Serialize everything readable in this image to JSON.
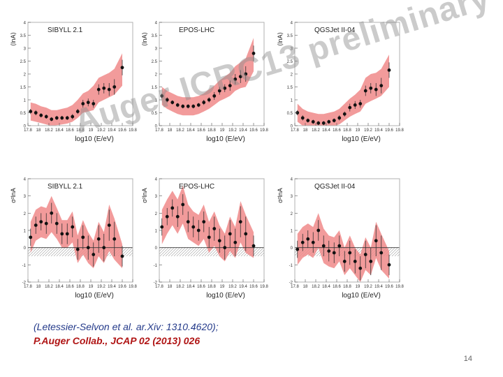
{
  "watermark": "Auger ICRC13 preliminary",
  "references": {
    "line1": "(Letessier-Selvon et al. ar.Xiv: 1310.4620);",
    "line2": "P.Auger Collab., JCAP 02 (2013) 026"
  },
  "page_number": "14",
  "colors": {
    "band": "#f08a8a",
    "point": "#111111",
    "grid": "#b0b0b0"
  },
  "chart_data": [
    {
      "type": "scatter",
      "panel": "top-left",
      "model": "SIBYLL 2.1",
      "ylabel": "⟨lnA⟩",
      "xlabel": "log10 (E/eV)",
      "xlim": [
        17.8,
        19.8
      ],
      "ylim": [
        0,
        4
      ],
      "yticks": [
        "0",
        "0.5",
        "1",
        "1.5",
        "2",
        "2.5",
        "3",
        "3.5",
        "4"
      ],
      "xticks": [
        "17.8",
        "18",
        "18.2",
        "18.4",
        "18.6",
        "18.8",
        "19",
        "19.2",
        "19.4",
        "19.6",
        "19.8"
      ],
      "x": [
        17.85,
        17.95,
        18.05,
        18.15,
        18.25,
        18.35,
        18.45,
        18.55,
        18.65,
        18.75,
        18.85,
        18.95,
        19.05,
        19.15,
        19.25,
        19.35,
        19.45,
        19.6
      ],
      "y": [
        0.55,
        0.5,
        0.4,
        0.35,
        0.25,
        0.3,
        0.3,
        0.3,
        0.35,
        0.55,
        0.85,
        0.9,
        0.85,
        1.4,
        1.45,
        1.4,
        1.5,
        2.25
      ],
      "band_lower": [
        0.2,
        0.15,
        0.1,
        0.05,
        0.0,
        0.02,
        0.05,
        0.08,
        0.15,
        0.3,
        0.5,
        0.55,
        0.6,
        0.9,
        1.0,
        1.1,
        1.2,
        1.55
      ],
      "band_upper": [
        0.9,
        0.85,
        0.75,
        0.7,
        0.6,
        0.6,
        0.65,
        0.7,
        0.8,
        1.0,
        1.25,
        1.35,
        1.55,
        1.85,
        1.95,
        2.05,
        2.2,
        2.8
      ],
      "errors": [
        0.1,
        0.1,
        0.08,
        0.08,
        0.08,
        0.08,
        0.08,
        0.08,
        0.1,
        0.1,
        0.15,
        0.15,
        0.15,
        0.2,
        0.2,
        0.25,
        0.3,
        0.3
      ]
    },
    {
      "type": "scatter",
      "panel": "top-middle",
      "model": "EPOS-LHC",
      "ylabel": "⟨lnA⟩",
      "xlabel": "log10 (E/eV)",
      "xlim": [
        17.8,
        19.8
      ],
      "ylim": [
        0,
        4
      ],
      "yticks": [
        "0",
        "0.5",
        "1",
        "1.5",
        "2",
        "2.5",
        "3",
        "3.5",
        "4"
      ],
      "xticks": [
        "17.8",
        "18",
        "18.2",
        "18.4",
        "18.6",
        "18.8",
        "19",
        "19.2",
        "19.4",
        "19.6",
        "19.8"
      ],
      "x": [
        17.85,
        17.95,
        18.05,
        18.15,
        18.25,
        18.35,
        18.45,
        18.55,
        18.65,
        18.75,
        18.85,
        18.95,
        19.05,
        19.15,
        19.25,
        19.35,
        19.45,
        19.6
      ],
      "y": [
        1.15,
        1.0,
        0.9,
        0.8,
        0.75,
        0.75,
        0.75,
        0.8,
        0.9,
        1.0,
        1.15,
        1.35,
        1.45,
        1.55,
        1.8,
        1.9,
        2.0,
        2.8
      ],
      "band_lower": [
        0.8,
        0.65,
        0.55,
        0.45,
        0.4,
        0.4,
        0.4,
        0.45,
        0.55,
        0.65,
        0.8,
        0.95,
        1.05,
        1.15,
        1.35,
        1.45,
        1.5,
        2.1
      ],
      "band_upper": [
        1.5,
        1.35,
        1.25,
        1.15,
        1.1,
        1.1,
        1.1,
        1.15,
        1.25,
        1.4,
        1.55,
        1.75,
        1.9,
        2.05,
        2.3,
        2.45,
        2.6,
        3.4
      ],
      "errors": [
        0.1,
        0.1,
        0.08,
        0.08,
        0.08,
        0.08,
        0.08,
        0.08,
        0.1,
        0.1,
        0.15,
        0.15,
        0.15,
        0.2,
        0.2,
        0.25,
        0.3,
        0.3
      ]
    },
    {
      "type": "scatter",
      "panel": "top-right",
      "model": "QGSJet II-04",
      "ylabel": "⟨lnA⟩",
      "xlabel": "log10 (E/eV)",
      "xlim": [
        17.8,
        19.8
      ],
      "ylim": [
        0,
        4
      ],
      "yticks": [
        "0",
        "0.5",
        "1",
        "1.5",
        "2",
        "2.5",
        "3",
        "3.5",
        "4"
      ],
      "xticks": [
        "17.8",
        "18",
        "18.2",
        "18.4",
        "18.6",
        "18.8",
        "19",
        "19.2",
        "19.4",
        "19.6",
        "19.8"
      ],
      "x": [
        17.85,
        17.95,
        18.05,
        18.15,
        18.25,
        18.35,
        18.45,
        18.55,
        18.65,
        18.75,
        18.85,
        18.95,
        19.05,
        19.15,
        19.25,
        19.35,
        19.45,
        19.6
      ],
      "y": [
        0.5,
        0.3,
        0.2,
        0.15,
        0.1,
        0.1,
        0.15,
        0.2,
        0.3,
        0.45,
        0.7,
        0.8,
        0.85,
        1.35,
        1.45,
        1.4,
        1.55,
        2.15
      ],
      "band_lower": [
        0.15,
        0.0,
        0.0,
        0.0,
        0.0,
        0.0,
        0.0,
        0.0,
        0.05,
        0.2,
        0.35,
        0.45,
        0.55,
        0.85,
        0.95,
        1.05,
        1.15,
        1.5
      ],
      "band_upper": [
        0.85,
        0.65,
        0.55,
        0.5,
        0.45,
        0.45,
        0.5,
        0.55,
        0.65,
        0.85,
        1.05,
        1.2,
        1.4,
        1.85,
        2.0,
        2.05,
        2.2,
        2.75
      ],
      "errors": [
        0.1,
        0.1,
        0.08,
        0.08,
        0.08,
        0.08,
        0.08,
        0.08,
        0.1,
        0.1,
        0.15,
        0.15,
        0.15,
        0.2,
        0.2,
        0.25,
        0.3,
        0.3
      ]
    },
    {
      "type": "scatter",
      "panel": "bottom-left",
      "model": "SIBYLL 2.1",
      "ylabel": "σ²lnA",
      "xlabel": "log10 (E/eV)",
      "xlim": [
        17.8,
        19.8
      ],
      "ylim": [
        -2,
        4
      ],
      "shaded_below_zero": true,
      "yticks": [
        "-2",
        "-1",
        "0",
        "1",
        "2",
        "3",
        "4"
      ],
      "xticks": [
        "17.8",
        "18",
        "18.2",
        "18.4",
        "18.6",
        "18.8",
        "19",
        "19.2",
        "19.4",
        "19.6",
        "19.8"
      ],
      "x": [
        17.85,
        17.95,
        18.05,
        18.15,
        18.25,
        18.35,
        18.45,
        18.55,
        18.65,
        18.75,
        18.85,
        18.95,
        19.05,
        19.15,
        19.25,
        19.35,
        19.45,
        19.6
      ],
      "y": [
        0.6,
        1.3,
        1.5,
        1.4,
        2.0,
        1.4,
        0.8,
        0.8,
        1.2,
        -0.1,
        0.6,
        0.0,
        -0.4,
        0.5,
        0.0,
        1.3,
        0.5,
        -0.5
      ],
      "band_lower": [
        -0.3,
        0.4,
        0.6,
        0.5,
        0.9,
        0.5,
        0.0,
        0.0,
        0.3,
        -0.9,
        -0.4,
        -0.9,
        -1.2,
        -0.5,
        -0.9,
        -0.2,
        -0.7,
        -1.2
      ],
      "band_upper": [
        1.5,
        2.2,
        2.4,
        2.3,
        3.0,
        2.3,
        1.6,
        1.6,
        2.1,
        0.7,
        1.6,
        0.9,
        0.4,
        1.5,
        0.9,
        2.5,
        1.7,
        0.2
      ],
      "errors": [
        0.5,
        0.5,
        0.5,
        0.6,
        0.6,
        0.6,
        0.6,
        0.6,
        0.6,
        0.6,
        0.7,
        0.7,
        0.7,
        0.8,
        0.8,
        0.9,
        1.0,
        0.6
      ]
    },
    {
      "type": "scatter",
      "panel": "bottom-middle",
      "model": "EPOS-LHC",
      "ylabel": "σ²lnA",
      "xlabel": "log10 (E/eV)",
      "xlim": [
        17.8,
        19.8
      ],
      "ylim": [
        -2,
        4
      ],
      "shaded_below_zero": true,
      "yticks": [
        "-2",
        "-1",
        "0",
        "1",
        "2",
        "3",
        "4"
      ],
      "xticks": [
        "17.8",
        "18",
        "18.2",
        "18.4",
        "18.6",
        "18.8",
        "19",
        "19.2",
        "19.4",
        "19.6",
        "19.8"
      ],
      "x": [
        17.85,
        17.95,
        18.05,
        18.15,
        18.25,
        18.35,
        18.45,
        18.55,
        18.65,
        18.75,
        18.85,
        18.95,
        19.05,
        19.15,
        19.25,
        19.35,
        19.45,
        19.6
      ],
      "y": [
        1.2,
        1.8,
        2.3,
        1.8,
        2.5,
        1.5,
        1.2,
        1.0,
        1.5,
        0.6,
        1.1,
        0.4,
        0.0,
        0.8,
        0.3,
        1.5,
        0.8,
        0.1
      ],
      "band_lower": [
        0.2,
        0.8,
        1.3,
        0.8,
        1.4,
        0.5,
        0.3,
        0.1,
        0.5,
        -0.3,
        0.1,
        -0.5,
        -0.8,
        -0.2,
        -0.6,
        0.3,
        -0.3,
        -0.6
      ],
      "band_upper": [
        2.2,
        2.8,
        3.3,
        2.8,
        3.6,
        2.5,
        2.1,
        1.9,
        2.5,
        1.5,
        2.1,
        1.3,
        0.8,
        1.8,
        1.2,
        2.7,
        1.9,
        0.9
      ],
      "errors": [
        0.5,
        0.5,
        0.5,
        0.6,
        0.6,
        0.6,
        0.6,
        0.6,
        0.6,
        0.6,
        0.7,
        0.7,
        0.7,
        0.8,
        0.8,
        0.9,
        1.0,
        0.6
      ]
    },
    {
      "type": "scatter",
      "panel": "bottom-right",
      "model": "QGSJet II-04",
      "ylabel": "σ²lnA",
      "xlabel": "log10 (E/eV)",
      "xlim": [
        17.8,
        19.8
      ],
      "ylim": [
        -2,
        4
      ],
      "shaded_below_zero": true,
      "yticks": [
        "-2",
        "-1",
        "0",
        "1",
        "2",
        "3",
        "4"
      ],
      "xticks": [
        "17.8",
        "18",
        "18.2",
        "18.4",
        "18.6",
        "18.8",
        "19",
        "19.2",
        "19.4",
        "19.6",
        "19.8"
      ],
      "x": [
        17.85,
        17.95,
        18.05,
        18.15,
        18.25,
        18.35,
        18.45,
        18.55,
        18.65,
        18.75,
        18.85,
        18.95,
        19.05,
        19.15,
        19.25,
        19.35,
        19.45,
        19.6
      ],
      "y": [
        -0.1,
        0.3,
        0.5,
        0.3,
        1.0,
        0.1,
        -0.2,
        -0.3,
        0.1,
        -0.8,
        -0.3,
        -0.8,
        -1.2,
        -0.4,
        -0.8,
        0.4,
        -0.3,
        -1.0
      ],
      "band_lower": [
        -1.0,
        -0.6,
        -0.4,
        -0.6,
        0.0,
        -0.9,
        -1.1,
        -1.2,
        -0.8,
        -1.6,
        -1.2,
        -1.6,
        -2.0,
        -1.3,
        -1.6,
        -0.6,
        -1.3,
        -1.8
      ],
      "band_upper": [
        0.8,
        1.2,
        1.4,
        1.2,
        2.0,
        1.1,
        0.7,
        0.6,
        1.0,
        0.0,
        0.7,
        0.0,
        -0.4,
        0.6,
        0.0,
        1.5,
        0.8,
        -0.2
      ],
      "errors": [
        0.5,
        0.5,
        0.5,
        0.6,
        0.6,
        0.6,
        0.6,
        0.6,
        0.6,
        0.6,
        0.7,
        0.7,
        0.7,
        0.8,
        0.8,
        0.9,
        1.0,
        0.6
      ]
    }
  ]
}
